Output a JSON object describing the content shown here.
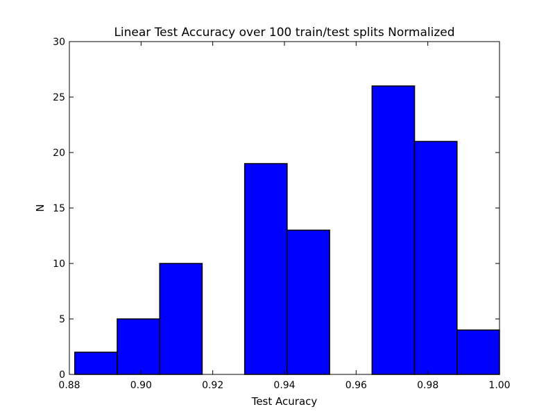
{
  "chart_data": {
    "type": "bar",
    "subtype": "histogram",
    "title": "Linear Test Accuracy over 100 train/test splits Normalized",
    "xlabel": "Test Acuracy",
    "ylabel": "N",
    "xlim": [
      0.88,
      1.0
    ],
    "ylim": [
      0,
      30
    ],
    "xticks": [
      "0.88",
      "0.90",
      "0.92",
      "0.94",
      "0.96",
      "0.98",
      "1.00"
    ],
    "yticks": [
      "0",
      "5",
      "10",
      "15",
      "20",
      "25",
      "30"
    ],
    "bin_edges": [
      0.8815,
      0.89335,
      0.9052,
      0.91705,
      0.9289,
      0.94075,
      0.9526,
      0.96445,
      0.9763,
      0.98815,
      1.0
    ],
    "counts": [
      2,
      5,
      10,
      0,
      19,
      13,
      0,
      26,
      21,
      4
    ],
    "bar_color": "#0000ff",
    "edge_color": "#000000",
    "grid": false
  }
}
